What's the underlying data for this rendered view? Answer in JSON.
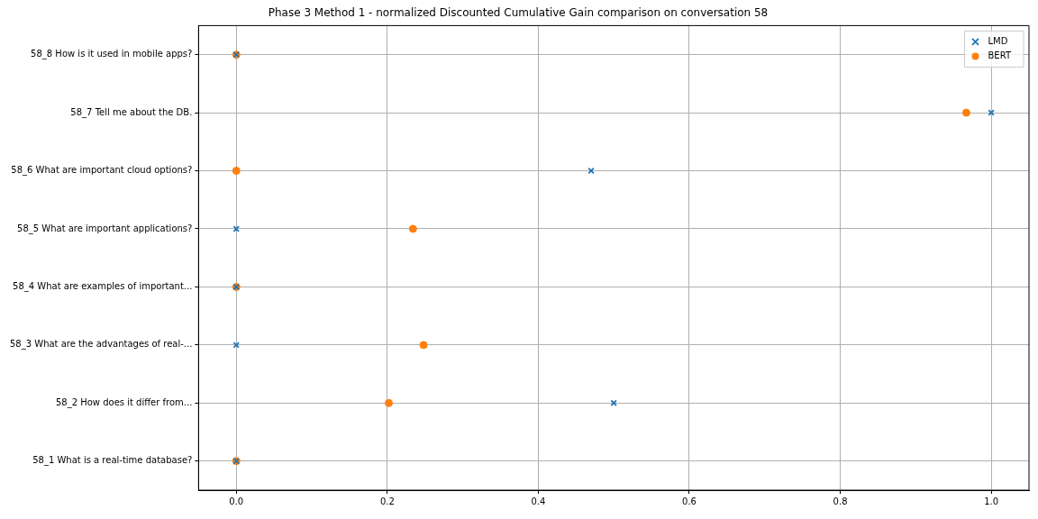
{
  "chart_data": {
    "type": "scatter",
    "orientation": "horizontal",
    "title": "Phase 3 Method 1 - normalized Discounted Cumulative Gain comparison on conversation 58",
    "categories": [
      "58_8 How is it used in mobile apps?",
      "58_7 Tell me about the DB.",
      "58_6 What are important cloud options?",
      "58_5 What are important applications?",
      "58_4 What are examples of important...",
      "58_3 What are the advantages of real-...",
      "58_2 How does it differ from...",
      "58_1 What is a real-time database?"
    ],
    "series": [
      {
        "name": "LMD",
        "color": "#1f77b4",
        "marker": "cross",
        "values": [
          0,
          1.0,
          0.47,
          0,
          0,
          0,
          0.5,
          0
        ]
      },
      {
        "name": "BERT",
        "color": "#ff7f0e",
        "marker": "circle",
        "values": [
          0,
          0.967,
          0,
          0.234,
          0,
          0.248,
          0.202,
          0
        ]
      }
    ],
    "xlim": [
      -0.05,
      1.05
    ],
    "xticks": [
      {
        "value": 0,
        "label": "0.0"
      },
      {
        "value": 0.2,
        "label": "0.2"
      },
      {
        "value": 0.4,
        "label": "0.4"
      },
      {
        "value": 0.6,
        "label": "0.6"
      },
      {
        "value": 0.8,
        "label": "0.8"
      },
      {
        "value": 1,
        "label": "1.0"
      }
    ],
    "grid": true,
    "legend": "top right"
  }
}
